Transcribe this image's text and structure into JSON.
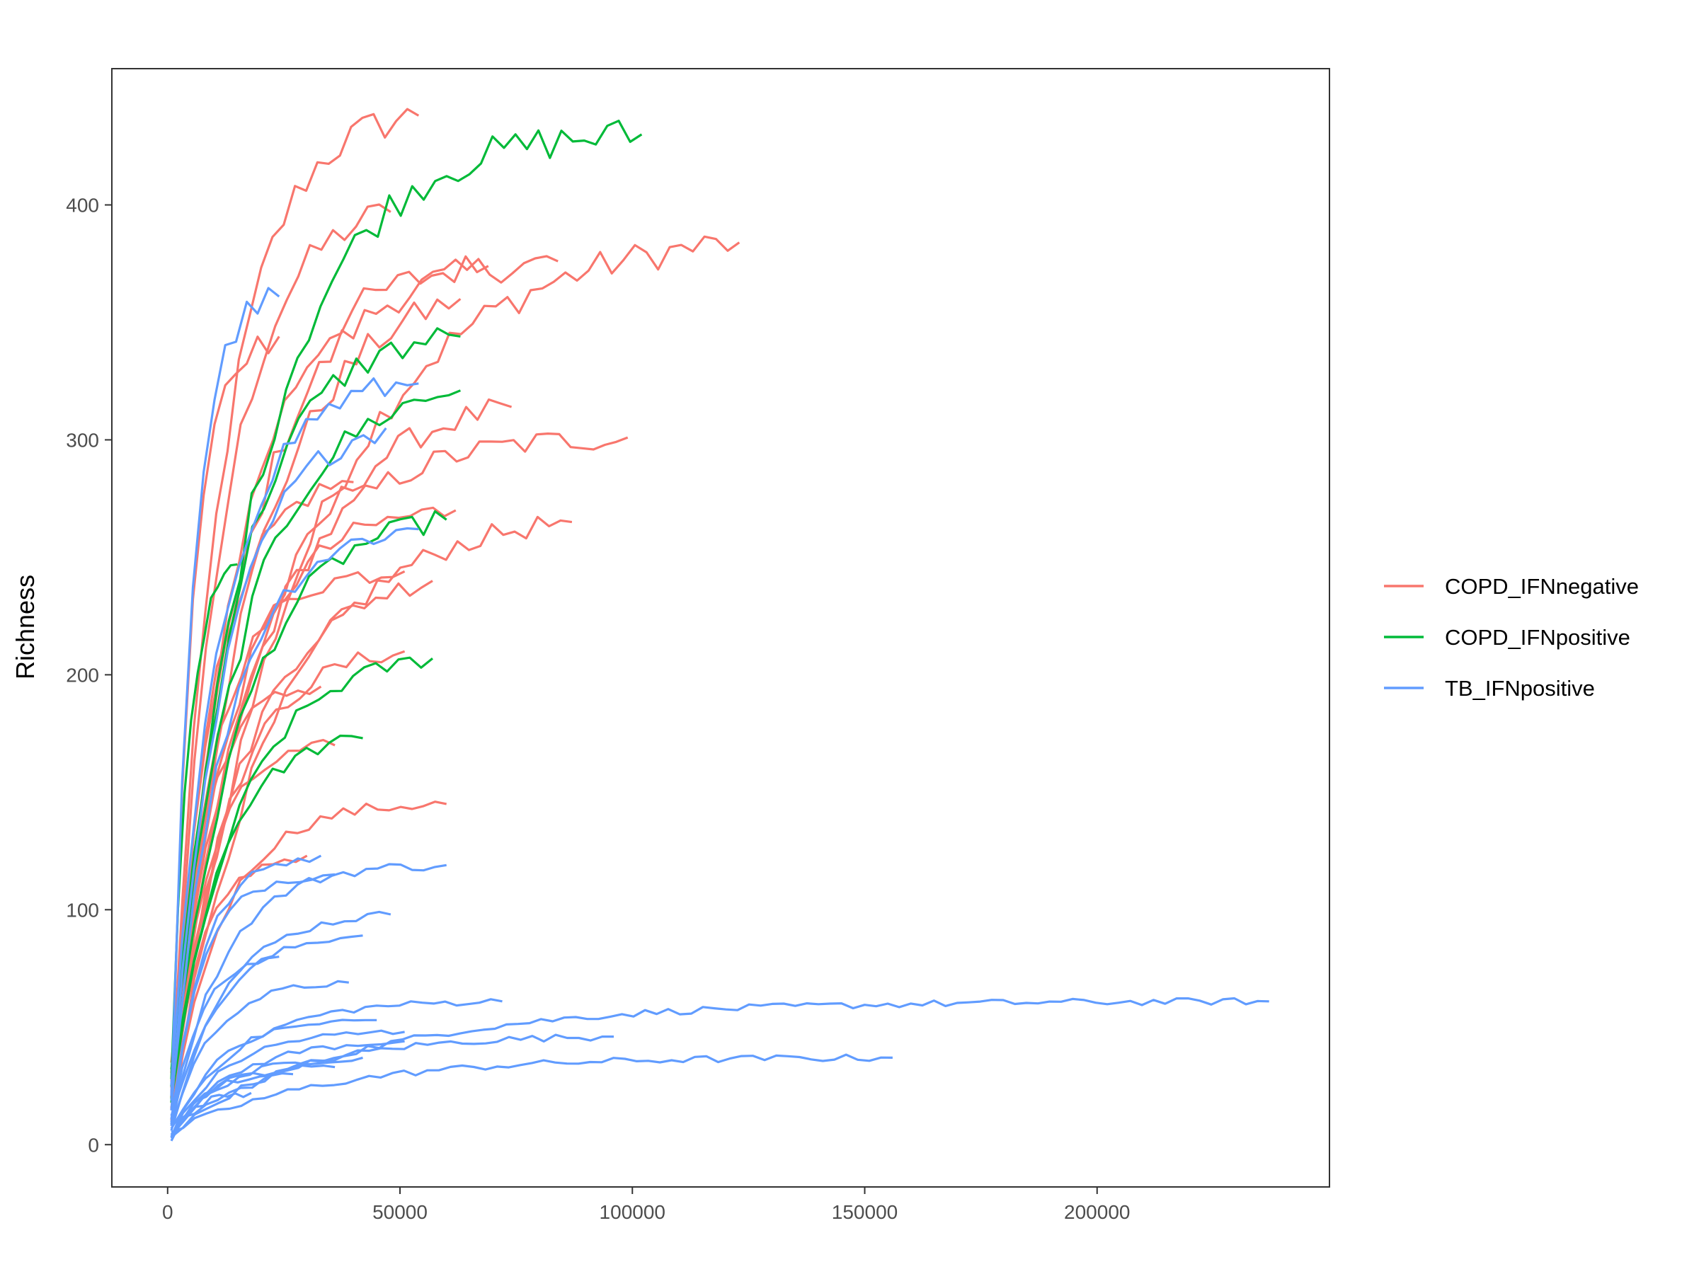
{
  "chart_data": {
    "type": "line",
    "title": "",
    "xlabel": "",
    "ylabel": "Richness",
    "xlim": [
      -12000,
      250000
    ],
    "ylim": [
      -18,
      458
    ],
    "x_ticks": [
      0,
      50000,
      100000,
      150000,
      200000
    ],
    "x_tick_labels": [
      "0",
      "50000",
      "100000",
      "150000",
      "200000"
    ],
    "y_ticks": [
      0,
      100,
      200,
      300,
      400
    ],
    "y_tick_labels": [
      "0",
      "100",
      "200",
      "300",
      "400"
    ],
    "grid": false,
    "legend_position": "right",
    "legend": [
      {
        "label": "COPD_IFNnegative",
        "color": "#F8766D"
      },
      {
        "label": "COPD_IFNpositive",
        "color": "#00BA38"
      },
      {
        "label": "TB_IFNpositive",
        "color": "#619CFF"
      }
    ],
    "series": [
      {
        "group": "COPD_IFNnegative",
        "end_x": 54000,
        "end_y": 438
      },
      {
        "group": "COPD_IFNnegative",
        "end_x": 48000,
        "end_y": 397
      },
      {
        "group": "COPD_IFNnegative",
        "end_x": 123000,
        "end_y": 384
      },
      {
        "group": "COPD_IFNnegative",
        "end_x": 84000,
        "end_y": 376
      },
      {
        "group": "COPD_IFNnegative",
        "end_x": 69000,
        "end_y": 374
      },
      {
        "group": "COPD_IFNnegative",
        "end_x": 63000,
        "end_y": 360
      },
      {
        "group": "COPD_IFNnegative",
        "end_x": 24000,
        "end_y": 344
      },
      {
        "group": "COPD_IFNnegative",
        "end_x": 74000,
        "end_y": 314
      },
      {
        "group": "COPD_IFNnegative",
        "end_x": 99000,
        "end_y": 301
      },
      {
        "group": "COPD_IFNnegative",
        "end_x": 40000,
        "end_y": 282
      },
      {
        "group": "COPD_IFNnegative",
        "end_x": 62000,
        "end_y": 270
      },
      {
        "group": "COPD_IFNnegative",
        "end_x": 87000,
        "end_y": 265
      },
      {
        "group": "COPD_IFNnegative",
        "end_x": 51000,
        "end_y": 244
      },
      {
        "group": "COPD_IFNnegative",
        "end_x": 57000,
        "end_y": 240
      },
      {
        "group": "COPD_IFNnegative",
        "end_x": 51000,
        "end_y": 210
      },
      {
        "group": "COPD_IFNnegative",
        "end_x": 33000,
        "end_y": 195
      },
      {
        "group": "COPD_IFNnegative",
        "end_x": 36000,
        "end_y": 170
      },
      {
        "group": "COPD_IFNnegative",
        "end_x": 60000,
        "end_y": 145
      },
      {
        "group": "COPD_IFNnegative",
        "end_x": 30000,
        "end_y": 123
      },
      {
        "group": "COPD_IFNpositive",
        "end_x": 102000,
        "end_y": 430
      },
      {
        "group": "COPD_IFNpositive",
        "end_x": 63000,
        "end_y": 344
      },
      {
        "group": "COPD_IFNpositive",
        "end_x": 63000,
        "end_y": 321
      },
      {
        "group": "COPD_IFNpositive",
        "end_x": 60000,
        "end_y": 266
      },
      {
        "group": "COPD_IFNpositive",
        "end_x": 15000,
        "end_y": 247
      },
      {
        "group": "COPD_IFNpositive",
        "end_x": 57000,
        "end_y": 207
      },
      {
        "group": "COPD_IFNpositive",
        "end_x": 42000,
        "end_y": 173
      },
      {
        "group": "TB_IFNpositive",
        "end_x": 24000,
        "end_y": 361
      },
      {
        "group": "TB_IFNpositive",
        "end_x": 54000,
        "end_y": 324
      },
      {
        "group": "TB_IFNpositive",
        "end_x": 47000,
        "end_y": 305
      },
      {
        "group": "TB_IFNpositive",
        "end_x": 54000,
        "end_y": 262
      },
      {
        "group": "TB_IFNpositive",
        "end_x": 33000,
        "end_y": 123
      },
      {
        "group": "TB_IFNpositive",
        "end_x": 60000,
        "end_y": 119
      },
      {
        "group": "TB_IFNpositive",
        "end_x": 36000,
        "end_y": 115
      },
      {
        "group": "TB_IFNpositive",
        "end_x": 48000,
        "end_y": 98
      },
      {
        "group": "TB_IFNpositive",
        "end_x": 42000,
        "end_y": 89
      },
      {
        "group": "TB_IFNpositive",
        "end_x": 24000,
        "end_y": 80
      },
      {
        "group": "TB_IFNpositive",
        "end_x": 39000,
        "end_y": 69
      },
      {
        "group": "TB_IFNpositive",
        "end_x": 237000,
        "end_y": 61
      },
      {
        "group": "TB_IFNpositive",
        "end_x": 72000,
        "end_y": 61
      },
      {
        "group": "TB_IFNpositive",
        "end_x": 45000,
        "end_y": 53
      },
      {
        "group": "TB_IFNpositive",
        "end_x": 51000,
        "end_y": 48
      },
      {
        "group": "TB_IFNpositive",
        "end_x": 96000,
        "end_y": 46
      },
      {
        "group": "TB_IFNpositive",
        "end_x": 51000,
        "end_y": 44
      },
      {
        "group": "TB_IFNpositive",
        "end_x": 156000,
        "end_y": 37
      },
      {
        "group": "TB_IFNpositive",
        "end_x": 42000,
        "end_y": 37
      },
      {
        "group": "TB_IFNpositive",
        "end_x": 36000,
        "end_y": 33
      },
      {
        "group": "TB_IFNpositive",
        "end_x": 27000,
        "end_y": 30
      },
      {
        "group": "TB_IFNpositive",
        "end_x": 18000,
        "end_y": 22
      }
    ]
  }
}
